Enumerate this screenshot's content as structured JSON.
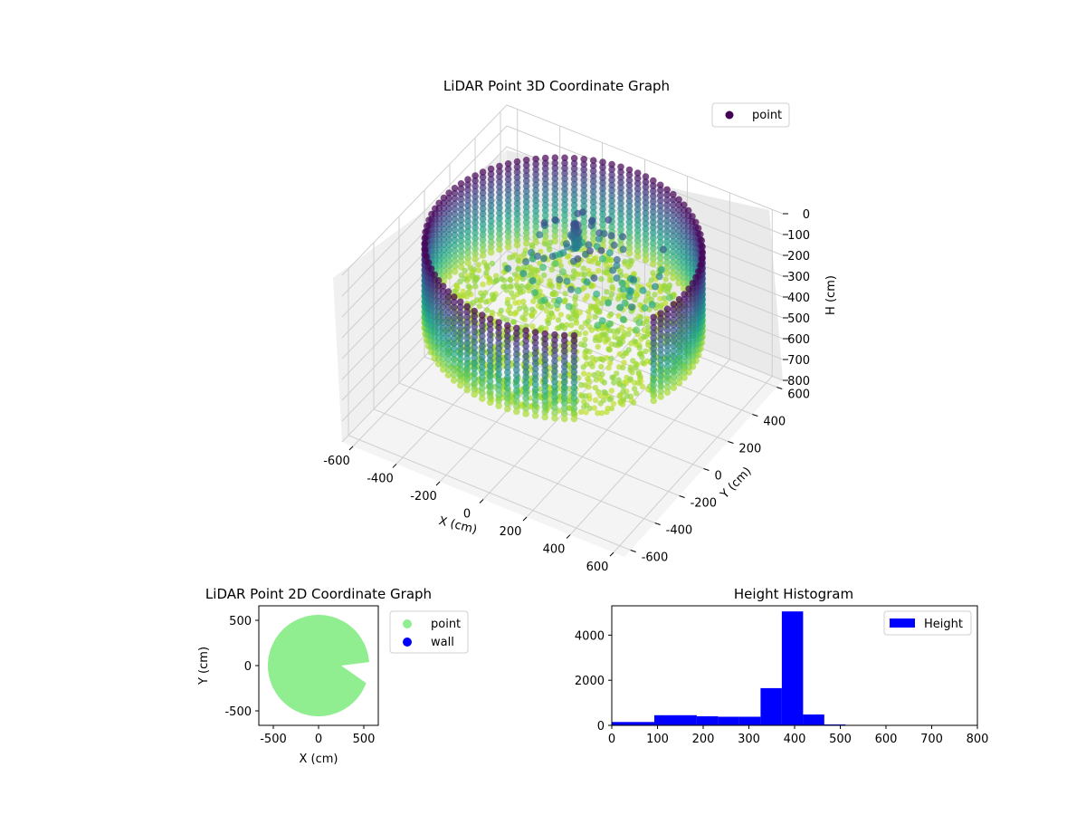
{
  "chart_data": [
    {
      "type": "scatter",
      "title": "LiDAR Point 3D Coordinate Graph",
      "xlabel": "X (cm)",
      "ylabel": "Y (cm)",
      "zlabel": "H (cm)",
      "x_ticks": [
        -600,
        -400,
        -200,
        0,
        200,
        400,
        600
      ],
      "y_ticks": [
        -600,
        -400,
        -200,
        0,
        200,
        400,
        600
      ],
      "z_ticks": [
        0,
        100,
        200,
        300,
        400,
        500,
        600,
        700,
        800
      ],
      "xlim": [
        -650,
        650
      ],
      "ylim": [
        -650,
        650
      ],
      "zlim": [
        800,
        0
      ],
      "z_inverted": true,
      "colormap": "viridis",
      "legend": {
        "position": "top-right",
        "entries": [
          {
            "name": "point",
            "color": "#440154"
          }
        ]
      },
      "scene": {
        "wall_radius": 560,
        "wall_gap_deg": [
          -55,
          -20
        ],
        "wall_height_range": [
          0,
          400
        ],
        "floor_height": 400,
        "cluster_center": [
          -80,
          180
        ],
        "cluster_height_range": [
          100,
          350
        ]
      },
      "grid": true
    },
    {
      "type": "scatter",
      "title": "LiDAR Point 2D Coordinate Graph",
      "xlabel": "X (cm)",
      "ylabel": "Y (cm)",
      "x_ticks": [
        -500,
        0,
        500
      ],
      "y_ticks": [
        -500,
        0,
        500
      ],
      "xlim": [
        -660,
        660
      ],
      "ylim": [
        -660,
        660
      ],
      "series": [
        {
          "name": "point",
          "color": "#90ee90",
          "shape": "disk",
          "radius": 560,
          "notch_deg": [
            -18,
            4
          ]
        },
        {
          "name": "wall",
          "color": "#0000ff"
        }
      ],
      "legend": {
        "position": "outside-right"
      }
    },
    {
      "type": "bar",
      "title": "Height Histogram",
      "bin_edges": [
        0,
        46.5,
        93,
        139.5,
        186,
        232.5,
        279,
        325.5,
        372,
        418.5,
        465,
        511.5,
        558,
        604.5,
        651,
        697.5,
        744,
        790.5
      ],
      "counts": [
        150,
        150,
        450,
        450,
        400,
        380,
        380,
        1650,
        5050,
        480,
        40,
        20,
        15,
        10,
        10,
        10,
        10
      ],
      "x_ticks": [
        0,
        100,
        200,
        300,
        400,
        500,
        600,
        700,
        800
      ],
      "y_ticks": [
        0,
        2000,
        4000
      ],
      "xlim": [
        0,
        800
      ],
      "ylim": [
        0,
        5300
      ],
      "series": [
        {
          "name": "Height",
          "color": "#0000ff"
        }
      ],
      "legend": {
        "position": "top-right"
      }
    }
  ]
}
